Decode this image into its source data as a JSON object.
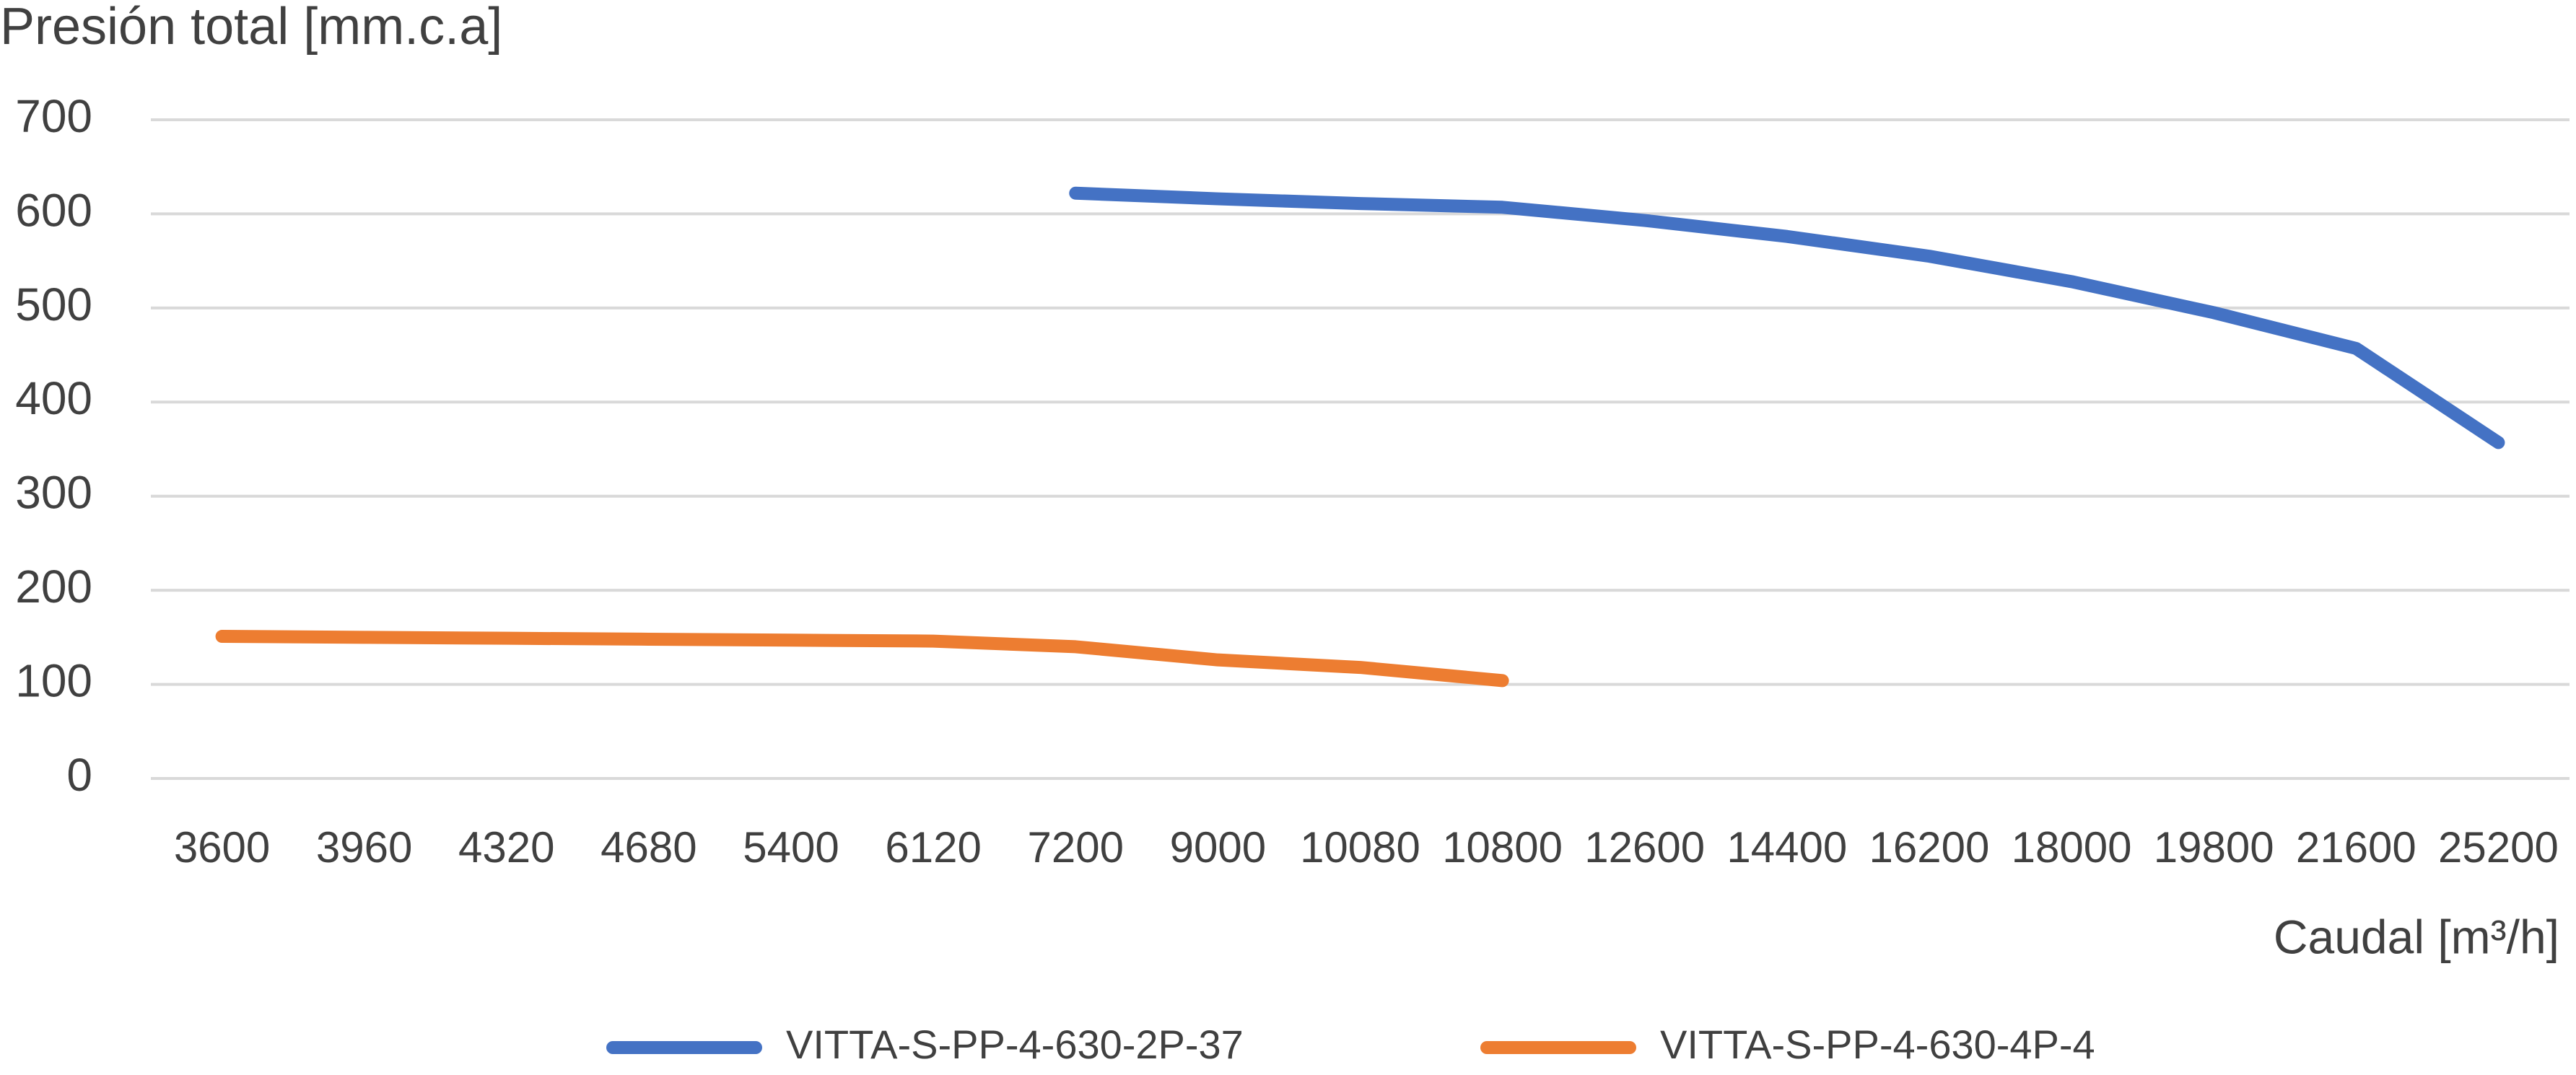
{
  "chart_data": {
    "type": "line",
    "title": "Presión total [mm.c.a]",
    "x_label": "Caudal [m³/h]",
    "categories": [
      "3600",
      "3960",
      "4320",
      "4680",
      "5400",
      "6120",
      "7200",
      "9000",
      "10080",
      "10800",
      "12600",
      "14400",
      "16200",
      "18000",
      "19800",
      "21600",
      "25200"
    ],
    "series": [
      {
        "name": "VITTA-S-PP-4-630-2P-37",
        "color": "#4472c4",
        "values": [
          null,
          null,
          null,
          null,
          null,
          null,
          622,
          616,
          611,
          607,
          593,
          576,
          555,
          528,
          495,
          457,
          357
        ]
      },
      {
        "name": "VITTA-S-PP-4-630-4P-4",
        "color": "#ed7d31",
        "values": [
          151,
          150,
          149,
          148,
          147,
          146,
          140,
          126,
          118,
          104,
          null,
          null,
          null,
          null,
          null,
          null,
          null
        ]
      }
    ],
    "ylim": [
      0,
      700
    ],
    "yticks": [
      0,
      100,
      200,
      300,
      400,
      500,
      600,
      700
    ],
    "grid": true,
    "legend": "bottom"
  }
}
